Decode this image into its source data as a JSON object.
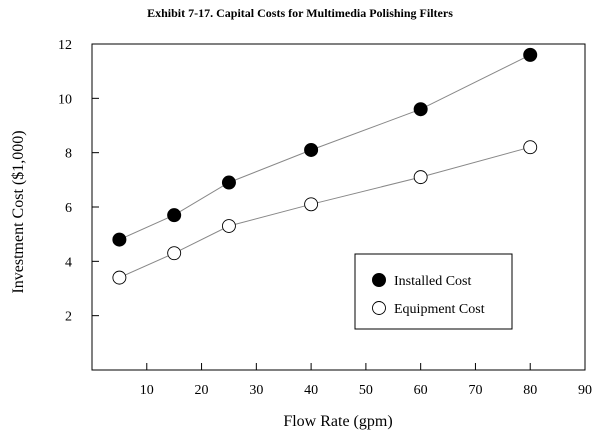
{
  "chart_data": {
    "type": "line",
    "title": "Exhibit 7-17. Capital Costs for Multimedia Polishing Filters",
    "xlabel": "Flow Rate (gpm)",
    "ylabel": "Investment Cost ($1,000)",
    "xlim": [
      0,
      90
    ],
    "ylim": [
      0,
      12
    ],
    "xticks": [
      10,
      20,
      30,
      40,
      50,
      60,
      70,
      80,
      90
    ],
    "yticks": [
      2,
      4,
      6,
      8,
      10,
      12
    ],
    "grid": false,
    "legend_position": "lower-right",
    "series": [
      {
        "name": "Installed Cost",
        "marker": "filled-circle",
        "color": "#000000",
        "x": [
          5,
          15,
          25,
          40,
          60,
          80
        ],
        "y": [
          4.8,
          5.7,
          6.9,
          8.1,
          9.6,
          11.6
        ]
      },
      {
        "name": "Equipment Cost",
        "marker": "open-circle",
        "color": "#000000",
        "x": [
          5,
          15,
          25,
          40,
          60,
          80
        ],
        "y": [
          3.4,
          4.3,
          5.3,
          6.1,
          7.1,
          8.2
        ]
      }
    ]
  }
}
